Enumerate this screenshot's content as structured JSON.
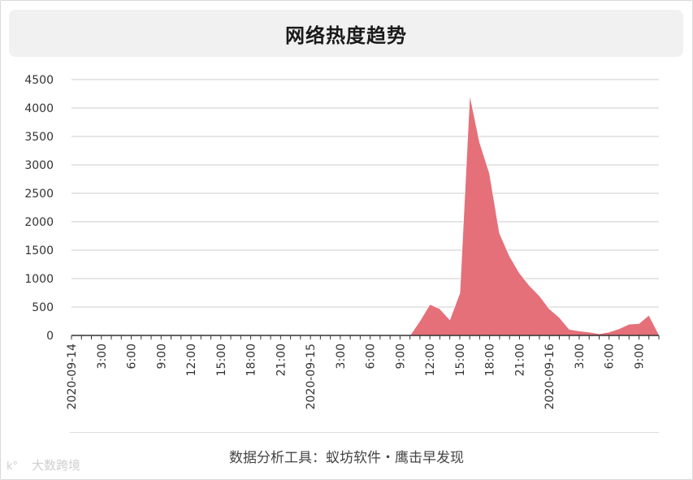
{
  "title": "网络热度趋势",
  "source": "数据分析工具：蚁坊软件・鹰击早发现",
  "watermark": "大数跨境",
  "colors": {
    "area": "#e5707a",
    "grid": "#cccccc",
    "axis": "#333333",
    "titleBg": "#f1f1f1"
  },
  "chart_data": {
    "type": "area",
    "title": "网络热度趋势",
    "xlabel": "",
    "ylabel": "",
    "ylim": [
      0,
      4500
    ],
    "yticks": [
      0,
      500,
      1000,
      1500,
      2000,
      2500,
      3000,
      3500,
      4000,
      4500
    ],
    "grid": true,
    "legend": "none",
    "x_start": "2020-09-14 00:00",
    "x_interval_hours": 1,
    "x_tick_labels": [
      "2020-09-14",
      "3:00",
      "6:00",
      "9:00",
      "12:00",
      "15:00",
      "18:00",
      "21:00",
      "2020-09-15",
      "3:00",
      "6:00",
      "9:00",
      "12:00",
      "15:00",
      "18:00",
      "21:00",
      "2020-09-16",
      "3:00",
      "6:00",
      "9:00"
    ],
    "series": [
      {
        "values": [
          0,
          0,
          0,
          0,
          0,
          0,
          0,
          0,
          0,
          0,
          0,
          0,
          0,
          0,
          0,
          0,
          0,
          0,
          0,
          0,
          0,
          0,
          0,
          0,
          0,
          0,
          0,
          0,
          0,
          0,
          0,
          0,
          0,
          0,
          0,
          260,
          550,
          470,
          280,
          750,
          4250,
          3400,
          2850,
          1800,
          1400,
          1100,
          880,
          700,
          470,
          320,
          110,
          80,
          60,
          30,
          60,
          120,
          200,
          210,
          360,
          20
        ]
      }
    ]
  }
}
